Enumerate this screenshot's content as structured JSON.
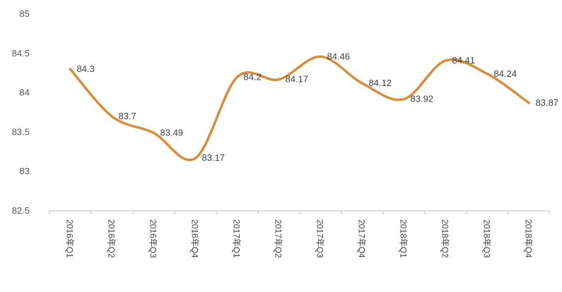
{
  "chart_data": {
    "type": "line",
    "title": "",
    "xlabel": "",
    "ylabel": "",
    "categories": [
      "2016年Q1",
      "2016年Q2",
      "2016年Q3",
      "2016年Q4",
      "2017年Q1",
      "2017年Q2",
      "2017年Q3",
      "2017年Q4",
      "2018年Q1",
      "2018年Q2",
      "2018年Q3",
      "2018年Q4"
    ],
    "series": [
      {
        "values": [
          84.3,
          83.7,
          83.49,
          83.17,
          84.2,
          84.17,
          84.46,
          84.12,
          83.92,
          84.41,
          84.24,
          83.87
        ]
      }
    ],
    "data_labels": [
      "84.3",
      "83.7",
      "83.49",
      "83.17",
      "84.2",
      "84.17",
      "84.46",
      "84.12",
      "83.92",
      "84.41",
      "84.24",
      "83.87"
    ],
    "ylim": [
      82.5,
      85
    ],
    "yticks": [
      82.5,
      83,
      83.5,
      84,
      84.5,
      85
    ],
    "ytick_labels": [
      "82.5",
      "83",
      "83.5",
      "84",
      "84.5",
      "85"
    ],
    "grid": false,
    "smooth": true,
    "legend": "none",
    "line_color": "#D88C3E",
    "axis_color": "#BFBFBF"
  }
}
